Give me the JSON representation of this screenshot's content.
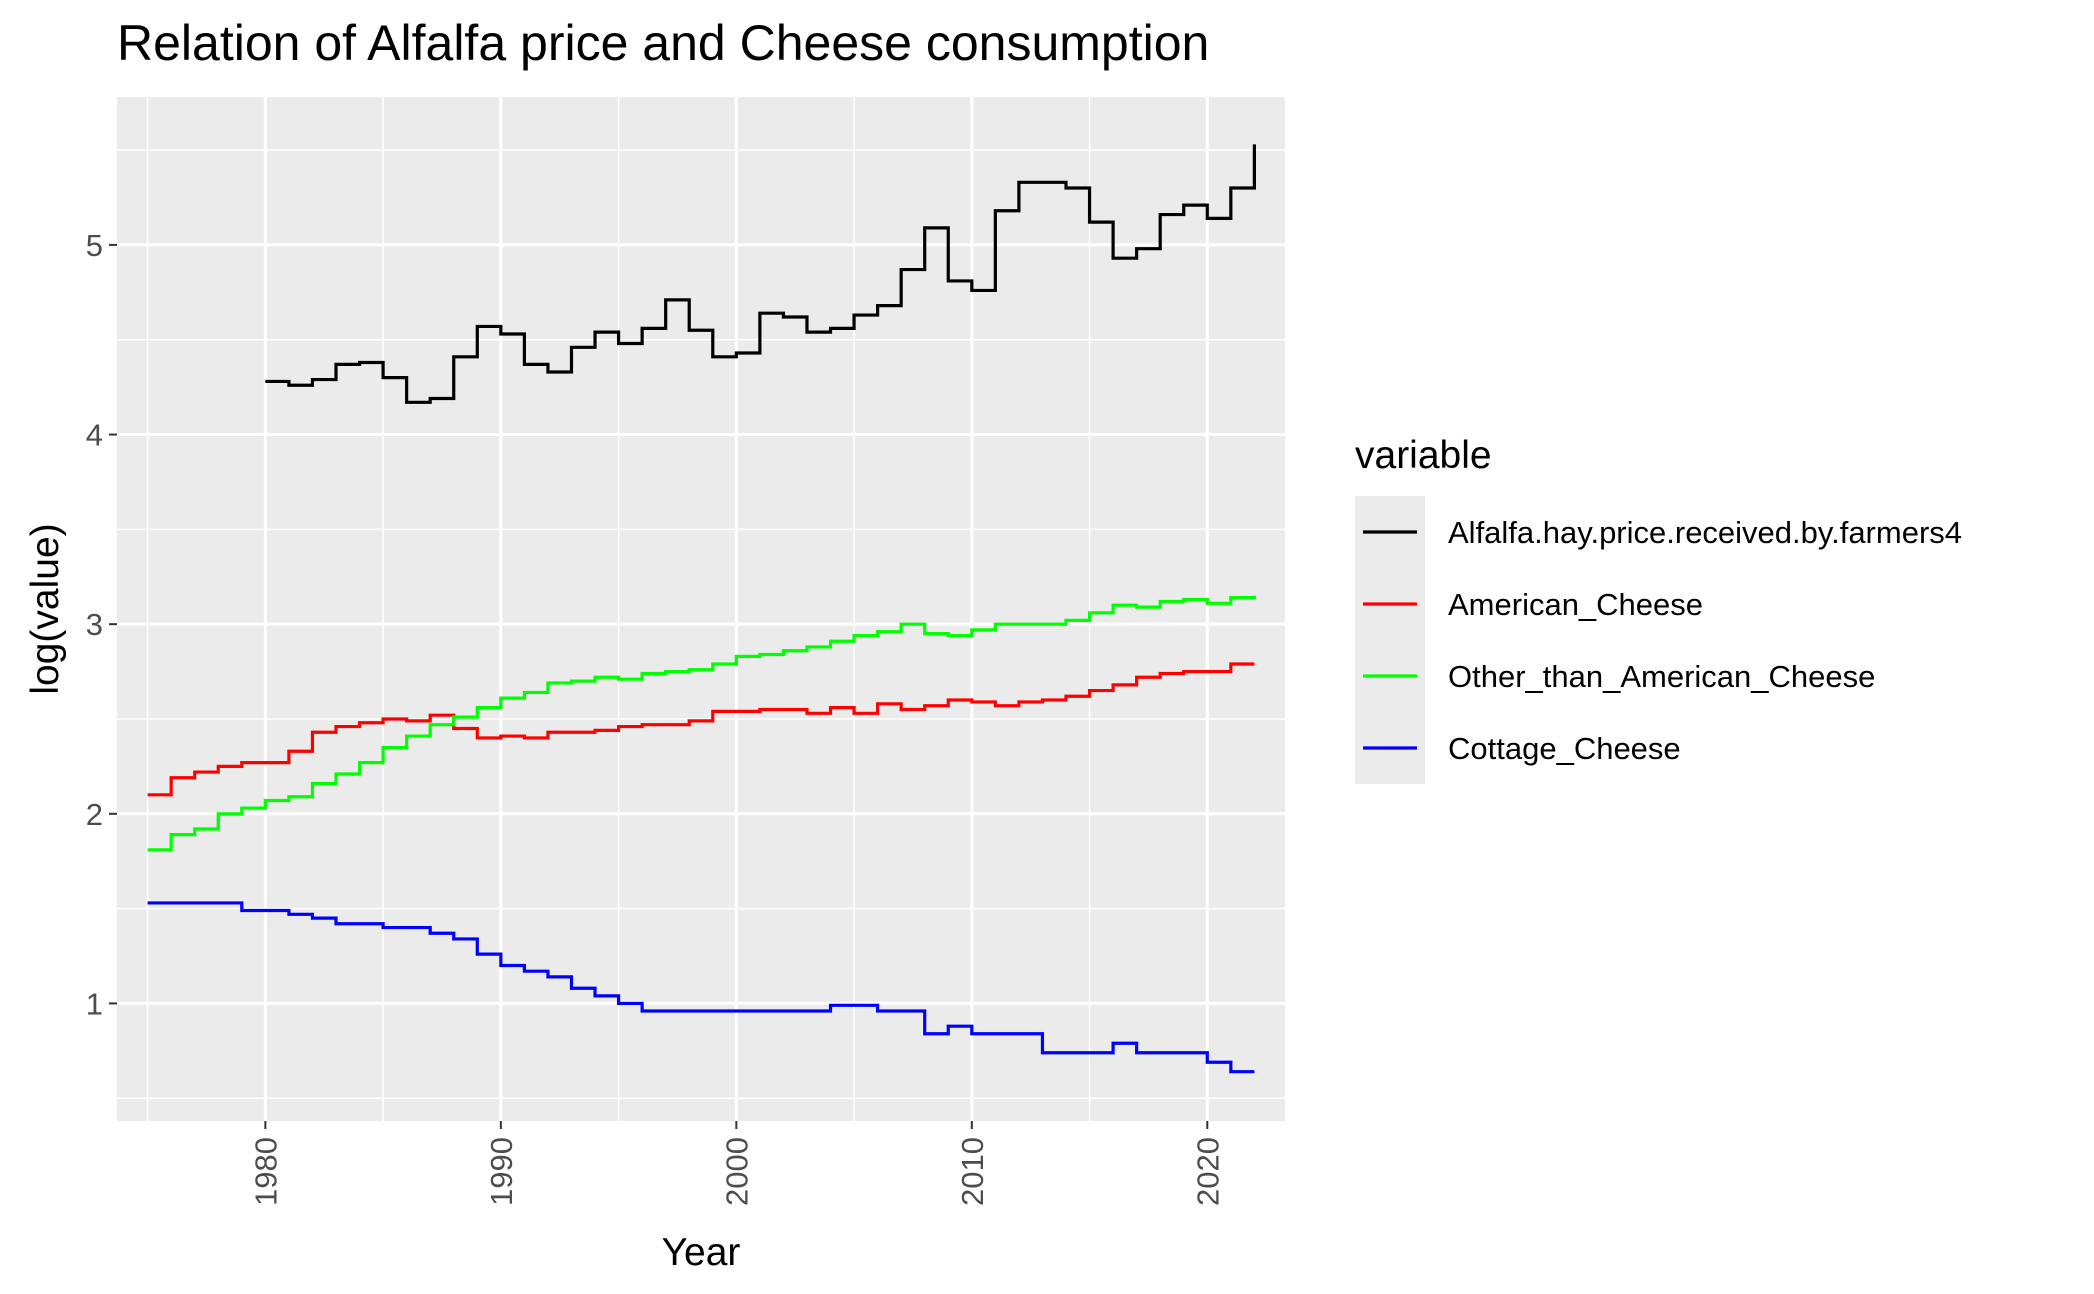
{
  "chart_data": {
    "type": "line",
    "step": true,
    "title": "Relation of Alfalfa price and Cheese consumption",
    "xlabel": "Year",
    "ylabel": "log(value)",
    "xlim": [
      1973.7,
      2023.3
    ],
    "ylim": [
      0.38,
      5.78
    ],
    "xticks": [
      1980,
      1990,
      2000,
      2010,
      2020
    ],
    "yticks": [
      1,
      2,
      3,
      4,
      5
    ],
    "grid": true,
    "panel_background": "#ebebeb",
    "legend": {
      "title": "variable",
      "position": "right"
    },
    "series": [
      {
        "name": "Alfalfa.hay.price.received.by.farmers4",
        "color": "#000000",
        "x": [
          1980,
          1981,
          1982,
          1983,
          1984,
          1985,
          1986,
          1987,
          1988,
          1989,
          1990,
          1991,
          1992,
          1993,
          1994,
          1995,
          1996,
          1997,
          1998,
          1999,
          2000,
          2001,
          2002,
          2003,
          2004,
          2005,
          2006,
          2007,
          2008,
          2009,
          2010,
          2011,
          2012,
          2013,
          2014,
          2015,
          2016,
          2017,
          2018,
          2019,
          2020,
          2021,
          2022
        ],
        "values": [
          4.28,
          4.26,
          4.29,
          4.37,
          4.38,
          4.3,
          4.17,
          4.19,
          4.41,
          4.57,
          4.53,
          4.37,
          4.33,
          4.46,
          4.54,
          4.48,
          4.56,
          4.71,
          4.55,
          4.41,
          4.43,
          4.64,
          4.62,
          4.54,
          4.56,
          4.63,
          4.68,
          4.87,
          5.09,
          4.81,
          4.76,
          5.18,
          5.33,
          5.33,
          5.3,
          5.12,
          4.93,
          4.98,
          5.16,
          5.21,
          5.14,
          5.3,
          5.53
        ]
      },
      {
        "name": "American_Cheese",
        "color": "#ff0000",
        "x": [
          1975,
          1976,
          1977,
          1978,
          1979,
          1980,
          1981,
          1982,
          1983,
          1984,
          1985,
          1986,
          1987,
          1988,
          1989,
          1990,
          1991,
          1992,
          1993,
          1994,
          1995,
          1996,
          1997,
          1998,
          1999,
          2000,
          2001,
          2002,
          2003,
          2004,
          2005,
          2006,
          2007,
          2008,
          2009,
          2010,
          2011,
          2012,
          2013,
          2014,
          2015,
          2016,
          2017,
          2018,
          2019,
          2020,
          2021,
          2022
        ],
        "values": [
          2.1,
          2.19,
          2.22,
          2.25,
          2.27,
          2.27,
          2.33,
          2.43,
          2.46,
          2.48,
          2.5,
          2.49,
          2.52,
          2.45,
          2.4,
          2.41,
          2.4,
          2.43,
          2.43,
          2.44,
          2.46,
          2.47,
          2.47,
          2.49,
          2.54,
          2.54,
          2.55,
          2.55,
          2.53,
          2.56,
          2.53,
          2.58,
          2.55,
          2.57,
          2.6,
          2.59,
          2.57,
          2.59,
          2.6,
          2.62,
          2.65,
          2.68,
          2.72,
          2.74,
          2.75,
          2.75,
          2.79,
          2.79
        ]
      },
      {
        "name": "Other_than_American_Cheese",
        "color": "#00ff00",
        "x": [
          1975,
          1976,
          1977,
          1978,
          1979,
          1980,
          1981,
          1982,
          1983,
          1984,
          1985,
          1986,
          1987,
          1988,
          1989,
          1990,
          1991,
          1992,
          1993,
          1994,
          1995,
          1996,
          1997,
          1998,
          1999,
          2000,
          2001,
          2002,
          2003,
          2004,
          2005,
          2006,
          2007,
          2008,
          2009,
          2010,
          2011,
          2012,
          2013,
          2014,
          2015,
          2016,
          2017,
          2018,
          2019,
          2020,
          2021,
          2022
        ],
        "values": [
          1.81,
          1.89,
          1.92,
          2.0,
          2.03,
          2.07,
          2.09,
          2.16,
          2.21,
          2.27,
          2.35,
          2.41,
          2.47,
          2.51,
          2.56,
          2.61,
          2.64,
          2.69,
          2.7,
          2.72,
          2.71,
          2.74,
          2.75,
          2.76,
          2.79,
          2.83,
          2.84,
          2.86,
          2.88,
          2.91,
          2.94,
          2.96,
          3.0,
          2.95,
          2.94,
          2.97,
          3.0,
          3.0,
          3.0,
          3.02,
          3.06,
          3.1,
          3.09,
          3.12,
          3.13,
          3.11,
          3.14,
          3.15
        ]
      },
      {
        "name": "Cottage_Cheese",
        "color": "#0000ff",
        "x": [
          1975,
          1976,
          1977,
          1978,
          1979,
          1980,
          1981,
          1982,
          1983,
          1984,
          1985,
          1986,
          1987,
          1988,
          1989,
          1990,
          1991,
          1992,
          1993,
          1994,
          1995,
          1996,
          1997,
          1998,
          1999,
          2000,
          2001,
          2002,
          2003,
          2004,
          2005,
          2006,
          2007,
          2008,
          2009,
          2010,
          2011,
          2012,
          2013,
          2014,
          2015,
          2016,
          2017,
          2018,
          2019,
          2020,
          2021,
          2022
        ],
        "values": [
          1.53,
          1.53,
          1.53,
          1.53,
          1.49,
          1.49,
          1.47,
          1.45,
          1.42,
          1.42,
          1.4,
          1.4,
          1.37,
          1.34,
          1.26,
          1.2,
          1.17,
          1.14,
          1.08,
          1.04,
          1.0,
          0.96,
          0.96,
          0.96,
          0.96,
          0.96,
          0.96,
          0.96,
          0.96,
          0.99,
          0.99,
          0.96,
          0.96,
          0.84,
          0.88,
          0.84,
          0.84,
          0.84,
          0.74,
          0.74,
          0.74,
          0.79,
          0.74,
          0.74,
          0.74,
          0.69,
          0.64,
          0.64
        ]
      }
    ]
  }
}
